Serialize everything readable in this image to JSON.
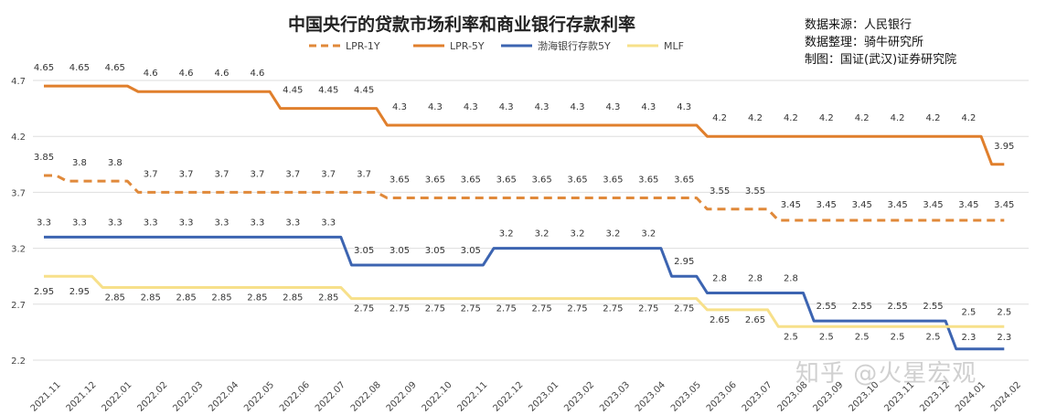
{
  "header": {
    "title": "中国央行的贷款市场利率和商业银行存款利率",
    "source_lines": [
      "数据来源：人民银行",
      "数据整理：骑牛研究所",
      "制图：国证(武汉)证券研究院"
    ],
    "watermark": "知乎 @火星宏观"
  },
  "chart_data": {
    "type": "line",
    "title": "中国央行的贷款市场利率和商业银行存款利率",
    "categories": [
      "2021.11",
      "2021.12",
      "2022.01",
      "2022.02",
      "2022.03",
      "2022.04",
      "2022.05",
      "2022.06",
      "2022.07",
      "2022.08",
      "2022.09",
      "2022.10",
      "2022.11",
      "2022.12",
      "2023.01",
      "2023.02",
      "2023.03",
      "2023.04",
      "2023.05",
      "2023.06",
      "2023.07",
      "2023.08",
      "2023.09",
      "2023.10",
      "2023.11",
      "2023.12",
      "2024.01",
      "2024.02"
    ],
    "series": [
      {
        "name": "LPR-1Y",
        "color": "#e0893a",
        "dash": true,
        "values": [
          3.85,
          3.8,
          3.8,
          3.7,
          3.7,
          3.7,
          3.7,
          3.7,
          3.7,
          3.7,
          3.65,
          3.65,
          3.65,
          3.65,
          3.65,
          3.65,
          3.65,
          3.65,
          3.65,
          3.55,
          3.55,
          3.45,
          3.45,
          3.45,
          3.45,
          3.45,
          3.45,
          3.45
        ]
      },
      {
        "name": "LPR-5Y",
        "color": "#e07f2c",
        "dash": false,
        "values": [
          4.65,
          4.65,
          4.65,
          4.6,
          4.6,
          4.6,
          4.6,
          4.45,
          4.45,
          4.45,
          4.3,
          4.3,
          4.3,
          4.3,
          4.3,
          4.3,
          4.3,
          4.3,
          4.3,
          4.2,
          4.2,
          4.2,
          4.2,
          4.2,
          4.2,
          4.2,
          4.2,
          3.95
        ]
      },
      {
        "name": "渤海银行存款5Y",
        "color": "#3c64b1",
        "dash": false,
        "values": [
          3.3,
          3.3,
          3.3,
          3.3,
          3.3,
          3.3,
          3.3,
          3.3,
          3.3,
          3.05,
          3.05,
          3.05,
          3.05,
          3.2,
          3.2,
          3.2,
          3.2,
          3.2,
          2.95,
          2.8,
          2.8,
          2.8,
          2.55,
          2.55,
          2.55,
          2.55,
          2.3,
          2.3
        ]
      },
      {
        "name": "MLF",
        "color": "#f7e08a",
        "dash": false,
        "values": [
          2.95,
          2.95,
          2.85,
          2.85,
          2.85,
          2.85,
          2.85,
          2.85,
          2.85,
          2.75,
          2.75,
          2.75,
          2.75,
          2.75,
          2.75,
          2.75,
          2.75,
          2.75,
          2.75,
          2.65,
          2.65,
          2.5,
          2.5,
          2.5,
          2.5,
          2.5,
          2.5,
          2.5
        ]
      }
    ],
    "yticks": [
      2.2,
      2.7,
      3.2,
      3.7,
      4.2,
      4.7
    ],
    "ylim": [
      2.2,
      4.7
    ],
    "grid": true,
    "legend_position": "top"
  }
}
